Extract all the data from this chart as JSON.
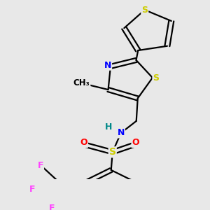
{
  "background_color": "#e8e8e8",
  "atom_colors": {
    "S": "#cccc00",
    "N": "#0000ff",
    "O": "#ff0000",
    "F": "#ff44ff",
    "H": "#008888",
    "C": "#000000"
  },
  "bond_color": "#000000",
  "bond_width": 1.6
}
